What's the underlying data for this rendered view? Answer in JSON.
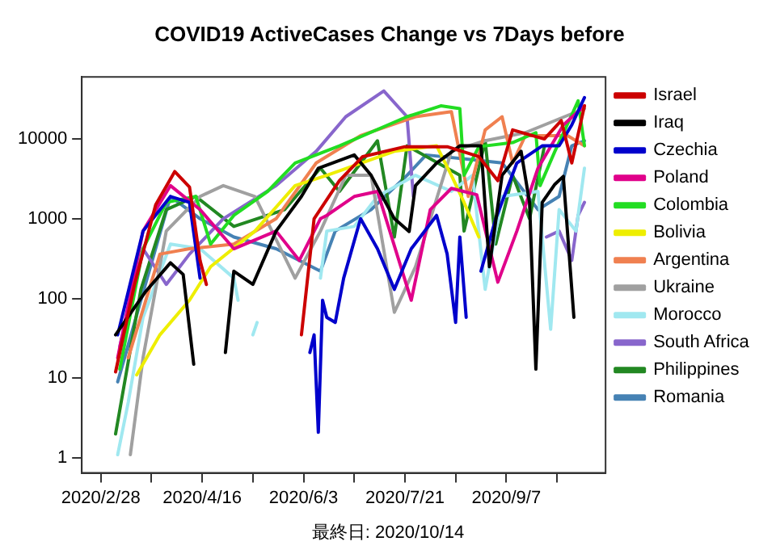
{
  "chart_data": {
    "type": "line",
    "title": "COVID19 ActiveCases Change vs 7Days before",
    "log": "y",
    "grid": false,
    "legend": "right",
    "marker": "none",
    "line_style": "solid",
    "xlim": [
      "2020-02-19",
      "2020-10-24"
    ],
    "xticks": [
      {
        "value": "2020-02-28",
        "label": "2020/2/28"
      },
      {
        "value": "2020-03-23",
        "label": null
      },
      {
        "value": "2020-04-16",
        "label": "2020/4/16"
      },
      {
        "value": "2020-05-10",
        "label": null
      },
      {
        "value": "2020-06-03",
        "label": "2020/6/3"
      },
      {
        "value": "2020-06-27",
        "label": null
      },
      {
        "value": "2020-07-21",
        "label": "2020/7/21"
      },
      {
        "value": "2020-08-14",
        "label": null
      },
      {
        "value": "2020-09-07",
        "label": "2020/9/7"
      },
      {
        "value": "2020-10-01",
        "label": null
      }
    ],
    "ylim": [
      0.65,
      60000
    ],
    "yticks": [
      1,
      10,
      100,
      1000,
      10000
    ],
    "annotations": [
      "最終日: 2020/10/14"
    ],
    "series": [
      {
        "name": "Israel",
        "color": "#cc0000",
        "x": [
          "2020-03-06",
          "2020-03-15",
          "2020-03-25",
          "2020-04-03",
          "2020-04-10",
          "2020-04-15",
          "2020-04-18",
          "2020-05-01",
          "2020-06-02",
          "2020-06-08",
          "2020-06-20",
          "2020-07-01",
          "2020-07-21",
          "2020-08-10",
          "2020-08-25",
          "2020-09-03",
          "2020-09-10",
          "2020-09-25",
          "2020-10-03",
          "2020-10-08",
          "2020-10-14"
        ],
        "values": [
          12,
          150,
          1500,
          3900,
          2500,
          300,
          150,
          null,
          35,
          1000,
          3000,
          6000,
          8000,
          8000,
          6000,
          3000,
          13000,
          10000,
          17000,
          5000,
          26000
        ]
      },
      {
        "name": "Iraq",
        "color": "#000000",
        "x": [
          "2020-03-06",
          "2020-03-20",
          "2020-04-01",
          "2020-04-07",
          "2020-04-12",
          "2020-04-20",
          "2020-04-27",
          "2020-05-01",
          "2020-05-10",
          "2020-05-21",
          "2020-06-02",
          "2020-06-10",
          "2020-06-27",
          "2020-07-05",
          "2020-07-16",
          "2020-07-23",
          "2020-07-26",
          "2020-08-05",
          "2020-08-16",
          "2020-08-26",
          "2020-08-30",
          "2020-09-05",
          "2020-09-14",
          "2020-09-18",
          "2020-09-21",
          "2020-09-24",
          "2020-09-30",
          "2020-10-04",
          "2020-10-09"
        ],
        "values": [
          35,
          120,
          280,
          200,
          15,
          null,
          21,
          220,
          150,
          700,
          1900,
          4300,
          6300,
          3500,
          1000,
          690,
          2600,
          5000,
          8200,
          8200,
          250,
          3500,
          7000,
          1600,
          13,
          1600,
          2700,
          3400,
          58
        ]
      },
      {
        "name": "Czechia",
        "color": "#0000cc",
        "x": [
          "2020-03-07",
          "2020-03-19",
          "2020-04-01",
          "2020-04-10",
          "2020-04-15",
          "2020-05-10",
          "2020-06-06",
          "2020-06-08",
          "2020-06-10",
          "2020-06-12",
          "2020-06-14",
          "2020-06-18",
          "2020-06-22",
          "2020-06-30",
          "2020-07-08",
          "2020-07-16",
          "2020-07-24",
          "2020-08-05",
          "2020-08-10",
          "2020-08-14",
          "2020-08-16",
          "2020-08-19",
          "2020-08-22",
          "2020-08-26",
          "2020-09-02",
          "2020-09-12",
          "2020-09-24",
          "2020-10-02",
          "2020-10-08",
          "2020-10-14"
        ],
        "values": [
          35,
          700,
          1900,
          1600,
          180,
          null,
          21,
          35,
          2.1,
          95,
          58,
          50,
          180,
          1000,
          420,
          130,
          420,
          1100,
          360,
          50,
          590,
          58,
          null,
          220,
          1000,
          5000,
          8200,
          8200,
          15000,
          33000
        ]
      },
      {
        "name": "Poland",
        "color": "#e0008a",
        "x": [
          "2020-03-07",
          "2020-03-19",
          "2020-04-01",
          "2020-04-15",
          "2020-05-01",
          "2020-05-21",
          "2020-06-01",
          "2020-06-11",
          "2020-06-14",
          "2020-06-27",
          "2020-07-08",
          "2020-07-24",
          "2020-08-02",
          "2020-08-12",
          "2020-08-24",
          "2020-09-03",
          "2020-09-12",
          "2020-09-22",
          "2020-10-04",
          "2020-10-14"
        ],
        "values": [
          18,
          700,
          2600,
          1300,
          420,
          700,
          300,
          1000,
          1100,
          1900,
          2200,
          95,
          1300,
          2400,
          2000,
          160,
          700,
          4300,
          15000,
          26000
        ]
      },
      {
        "name": "Colombia",
        "color": "#22dd22",
        "x": [
          "2020-03-08",
          "2020-03-19",
          "2020-03-30",
          "2020-04-13",
          "2020-04-20",
          "2020-05-01",
          "2020-05-17",
          "2020-05-30",
          "2020-06-20",
          "2020-07-22",
          "2020-08-07",
          "2020-08-16",
          "2020-08-18",
          "2020-08-25",
          "2020-09-10",
          "2020-09-21",
          "2020-09-23",
          "2020-09-30",
          "2020-10-08",
          "2020-10-11",
          "2020-10-14"
        ],
        "values": [
          13,
          420,
          1600,
          1900,
          480,
          1100,
          2200,
          5000,
          8200,
          19000,
          26000,
          24000,
          3500,
          8000,
          9000,
          12000,
          2600,
          7000,
          20000,
          30000,
          8200
        ]
      },
      {
        "name": "Bolivia",
        "color": "#eeee00",
        "x": [
          "2020-03-16",
          "2020-03-27",
          "2020-04-10",
          "2020-04-20",
          "2020-05-11",
          "2020-05-30",
          "2020-06-14",
          "2020-07-16",
          "2020-08-05",
          "2020-08-12",
          "2020-08-18",
          "2020-08-25"
        ],
        "values": [
          11,
          35,
          95,
          250,
          700,
          2600,
          3500,
          7000,
          8200,
          3500,
          1600,
          590
        ]
      },
      {
        "name": "Argentina",
        "color": "#f08050",
        "x": [
          "2020-03-12",
          "2020-03-27",
          "2020-04-10",
          "2020-05-01",
          "2020-05-21",
          "2020-06-09",
          "2020-06-30",
          "2020-07-26",
          "2020-08-12",
          "2020-08-20",
          "2020-08-28",
          "2020-09-05",
          "2020-09-10",
          "2020-09-16",
          "2020-10-06",
          "2020-10-14"
        ],
        "values": [
          18,
          360,
          420,
          480,
          1000,
          5000,
          11000,
          19000,
          22000,
          1900,
          13000,
          19000,
          5000,
          11000,
          11000,
          8200
        ]
      },
      {
        "name": "Ukraine",
        "color": "#a0a0a0",
        "x": [
          "2020-03-13",
          "2020-03-19",
          "2020-03-30",
          "2020-04-15",
          "2020-04-26",
          "2020-05-11",
          "2020-05-30",
          "2020-06-11",
          "2020-06-23",
          "2020-07-05",
          "2020-07-16",
          "2020-07-26",
          "2020-08-12",
          "2020-08-28",
          "2020-09-16",
          "2020-10-14"
        ],
        "values": [
          1.1,
          18,
          700,
          1900,
          2600,
          1900,
          180,
          700,
          3500,
          3500,
          67,
          250,
          7000,
          9500,
          12000,
          24000
        ]
      },
      {
        "name": "Morocco",
        "color": "#a0e8f0",
        "x": [
          "2020-03-07",
          "2020-03-12",
          "2020-03-19",
          "2020-04-01",
          "2020-04-15",
          "2020-05-01",
          "2020-05-03",
          "2020-05-07",
          "2020-05-10",
          "2020-05-12",
          "2020-05-20",
          "2020-06-11",
          "2020-06-14",
          "2020-06-27",
          "2020-07-08",
          "2020-07-26",
          "2020-08-12",
          "2020-08-22",
          "2020-08-28",
          "2020-09-05",
          "2020-09-22",
          "2020-09-28",
          "2020-10-02",
          "2020-10-10",
          "2020-10-14"
        ],
        "values": [
          1.1,
          5,
          58,
          480,
          420,
          180,
          95,
          null,
          35,
          50,
          null,
          180,
          700,
          800,
          1900,
          3500,
          2200,
          3500,
          130,
          1900,
          2200,
          41,
          1300,
          700,
          4300
        ]
      },
      {
        "name": "South Africa",
        "color": "#8866cc",
        "x": [
          "2020-03-08",
          "2020-03-19",
          "2020-03-30",
          "2020-04-10",
          "2020-04-26",
          "2020-05-21",
          "2020-06-09",
          "2020-06-23",
          "2020-07-11",
          "2020-07-22",
          "2020-07-25",
          "2020-08-30",
          "2020-09-26",
          "2020-10-02",
          "2020-10-08",
          "2020-10-11",
          "2020-10-14"
        ],
        "values": [
          25,
          420,
          150,
          360,
          1000,
          2600,
          7000,
          19000,
          40000,
          19000,
          1900,
          null,
          590,
          700,
          300,
          1100,
          1600
        ]
      },
      {
        "name": "Philippines",
        "color": "#228822",
        "x": [
          "2020-03-06",
          "2020-03-18",
          "2020-03-30",
          "2020-04-13",
          "2020-05-01",
          "2020-05-25",
          "2020-06-11",
          "2020-06-20",
          "2020-07-08",
          "2020-07-16",
          "2020-07-22",
          "2020-08-16",
          "2020-08-18",
          "2020-08-28",
          "2020-09-02",
          "2020-09-10",
          "2020-09-18",
          "2020-09-25"
        ],
        "values": [
          2,
          130,
          1300,
          1900,
          800,
          1300,
          4300,
          2200,
          9500,
          590,
          8200,
          3500,
          700,
          9500,
          480,
          3500,
          1000,
          8000
        ]
      },
      {
        "name": "Romania",
        "color": "#4682b4",
        "x": [
          "2020-03-07",
          "2020-03-18",
          "2020-04-01",
          "2020-04-15",
          "2020-05-01",
          "2020-05-21",
          "2020-06-11",
          "2020-06-18",
          "2020-07-05",
          "2020-07-22",
          "2020-07-31",
          "2020-08-22",
          "2020-09-05",
          "2020-09-22",
          "2020-10-02",
          "2020-10-08",
          "2020-10-14"
        ],
        "values": [
          9,
          95,
          1900,
          1000,
          590,
          420,
          220,
          700,
          1300,
          3500,
          6300,
          5500,
          5000,
          1300,
          1900,
          8200,
          9500
        ]
      }
    ]
  }
}
